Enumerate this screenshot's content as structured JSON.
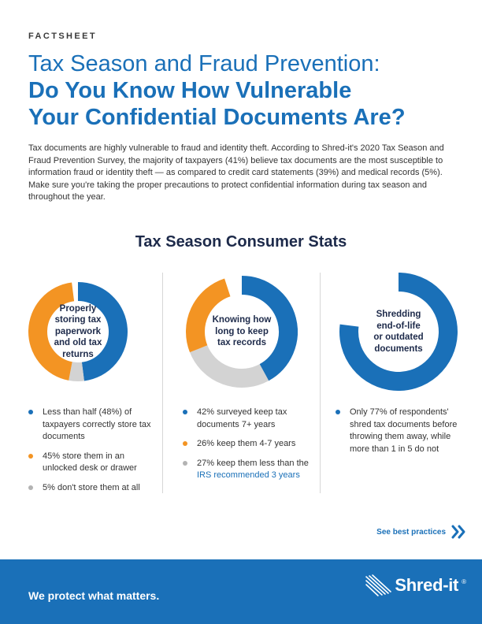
{
  "header": {
    "eyebrow": "FACTSHEET",
    "title_line1": "Tax Season and Fraud Prevention:",
    "title_line2": "Do You Know How Vulnerable",
    "title_line3": "Your Confidential Documents Are?"
  },
  "intro": "Tax documents are highly vulnerable to fraud and identity theft. According to Shred-it's 2020 Tax Season and Fraud Prevention Survey, the majority of taxpayers (41%) believe tax documents are the most susceptible to information fraud or identity theft — as compared to credit card statements (39%) and medical records (5%). Make sure you're taking the proper precautions to protect confidential information during tax season and throughout the year.",
  "section_title": "Tax Season Consumer Stats",
  "colors": {
    "blue": "#1a70b8",
    "orange": "#f39423",
    "gray": "#d3d3d3",
    "navy": "#1d2a4a"
  },
  "stats": [
    {
      "donut_label": [
        "Properly",
        "storing tax",
        "paperwork",
        "and old tax",
        "returns"
      ],
      "segments": [
        {
          "color": "blue",
          "value": 48
        },
        {
          "color": "gray",
          "value": 5
        },
        {
          "color": "orange",
          "value": 45
        }
      ],
      "bullets": [
        {
          "color": "blue",
          "text": "Less than half (48%) of taxpayers correctly store tax documents"
        },
        {
          "color": "orange",
          "text": "45% store them in an unlocked desk or drawer"
        },
        {
          "color": "gray",
          "text": "5% don't store them at all"
        }
      ]
    },
    {
      "donut_label": [
        "Knowing how",
        "long to keep",
        "tax records"
      ],
      "segments": [
        {
          "color": "blue",
          "value": 42
        },
        {
          "color": "gray",
          "value": 27
        },
        {
          "color": "orange",
          "value": 26
        }
      ],
      "bullets": [
        {
          "color": "blue",
          "text": "42% surveyed keep tax documents 7+ years"
        },
        {
          "color": "orange",
          "text": "26% keep them 4-7 years"
        },
        {
          "color": "gray",
          "text": "27% keep them less than the ",
          "link": "IRS recommended 3 years"
        }
      ]
    },
    {
      "donut_label": [
        "Shredding",
        "end-of-life",
        "or outdated",
        "documents"
      ],
      "segments": [
        {
          "color": "blue",
          "value": 77
        }
      ],
      "bullets": [
        {
          "color": "blue",
          "text": "Only 77% of respondents' shred tax documents before throwing them away, while more than 1 in 5 do not"
        }
      ]
    }
  ],
  "cta": {
    "label": "See best practices",
    "icon": "double-chevron-right-icon"
  },
  "footer": {
    "tagline": "We protect what matters.",
    "logo_text": "Shred-it",
    "logo_mark": "®"
  }
}
